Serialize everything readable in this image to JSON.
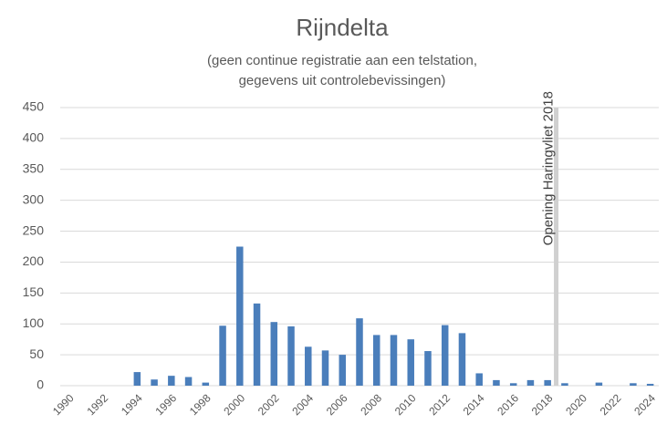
{
  "chart_data": {
    "type": "bar",
    "title": "Rijndelta",
    "subtitle": [
      "(geen continue registratie aan een telstation,",
      "gegevens uit controlebevissingen)"
    ],
    "categories": [
      "1990",
      null,
      "1992",
      null,
      "1994",
      null,
      "1996",
      null,
      "1998",
      null,
      "2000",
      null,
      "2002",
      null,
      "2004",
      null,
      "2006",
      null,
      "2008",
      null,
      "2010",
      null,
      "2012",
      null,
      "2014",
      null,
      "2016",
      null,
      "2018",
      null,
      "2020",
      null,
      "2022",
      null,
      "2024"
    ],
    "values": [
      0,
      0,
      0,
      0,
      22,
      10,
      16,
      14,
      5,
      97,
      225,
      133,
      103,
      96,
      63,
      57,
      50,
      109,
      82,
      82,
      75,
      56,
      98,
      85,
      20,
      9,
      4,
      9,
      9,
      4,
      0,
      5,
      0,
      4,
      3
    ],
    "color": "#4a7ebb",
    "ylim": [
      0,
      450
    ],
    "yticks": [
      0,
      50,
      100,
      150,
      200,
      250,
      300,
      350,
      400,
      450
    ],
    "grid": true,
    "annotation": "Opening Haringvliet 2018"
  }
}
